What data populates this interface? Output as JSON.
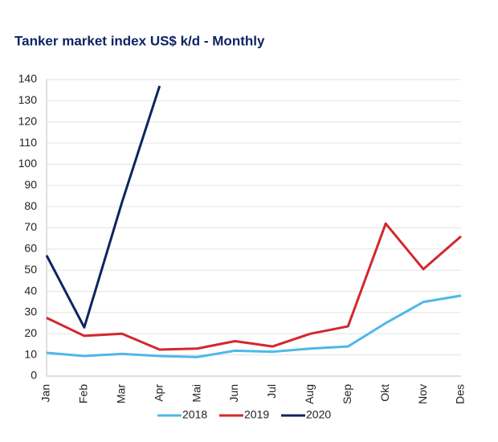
{
  "chart_data": {
    "type": "line",
    "title": "Tanker market index US$ k/d - Monthly",
    "categories": [
      "Jan",
      "Feb",
      "Mar",
      "Apr",
      "Mai",
      "Jun",
      "Jul",
      "Aug",
      "Sep",
      "Okt",
      "Nov",
      "Des"
    ],
    "series": [
      {
        "name": "2018",
        "color": "#4db8e8",
        "values": [
          11,
          9.5,
          10.5,
          9.5,
          9,
          12,
          11.5,
          13,
          14,
          25,
          35,
          38
        ]
      },
      {
        "name": "2019",
        "color": "#d2282e",
        "values": [
          27.5,
          19,
          20,
          12.5,
          13,
          16.5,
          14,
          20,
          23.5,
          72,
          50.5,
          66
        ]
      },
      {
        "name": "2020",
        "color": "#0d2462",
        "values": [
          57,
          23,
          82,
          137,
          null,
          null,
          null,
          null,
          null,
          null,
          null,
          null
        ]
      }
    ],
    "ylim": [
      0,
      140
    ],
    "yticks": [
      0,
      10,
      20,
      30,
      40,
      50,
      60,
      70,
      80,
      90,
      100,
      110,
      120,
      130,
      140
    ],
    "grid": true,
    "legend": "bottom"
  }
}
